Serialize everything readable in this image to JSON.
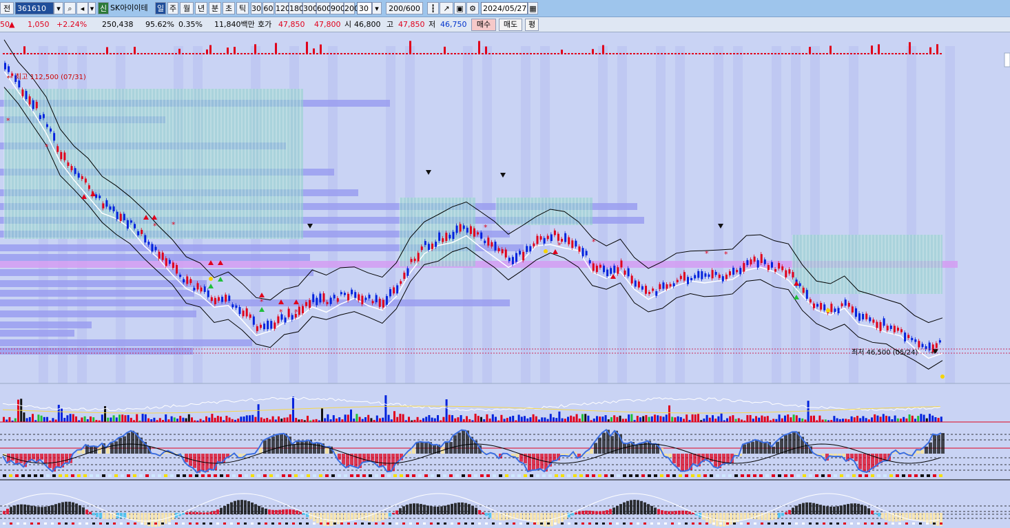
{
  "toolbar": {
    "prefix_label": "전",
    "code_value": "361610",
    "stock_name": "SK아이이테",
    "new_badge": "신",
    "periods": [
      "일",
      "주",
      "월",
      "년",
      "분",
      "초",
      "틱"
    ],
    "active_period": "일",
    "intervals": [
      "30",
      "60",
      "120",
      "180",
      "300",
      "600",
      "900",
      "200"
    ],
    "count_value": "30",
    "range_label": "200/600",
    "date_value": "2024/05/27"
  },
  "quote": {
    "prev_fragment": "50",
    "change_arrow": "▲",
    "change": "1,050",
    "change_pct": "+2.24%",
    "volume": "250,438",
    "vol_ratio": "95.62%",
    "turnover": "0.35%",
    "amount": "11,840백만",
    "ask_label": "호가",
    "ask1": "47,850",
    "ask2": "47,800",
    "open_label": "시",
    "open": "46,800",
    "high_label": "고",
    "high": "47,850",
    "low_label": "저",
    "low": "46,750",
    "buy_label": "매수",
    "sell_label": "매도",
    "eval_label": "평"
  },
  "chart_annotations": {
    "max_label": "최고 112,500 (07/31)",
    "min_label": "최저 46,500 (05/24)"
  },
  "colors": {
    "up": "#e0001b",
    "down": "#0022dd",
    "cloud": "#8fd3c8",
    "background": "#c9d3f4",
    "volume_profile": "#9a9ef0",
    "highlight_band": "#d49cf2"
  },
  "chart_data": {
    "type": "line",
    "series": [
      {
        "values": [
          112500,
          108000,
          104000,
          99000,
          92000,
          88000,
          84500,
          80500,
          78200,
          75800,
          72500,
          69000,
          66000,
          62000,
          60500,
          57500,
          58000,
          55500,
          52000,
          51500,
          54000,
          55000,
          58500,
          57500,
          59000,
          59500,
          58000,
          57500,
          60500,
          66500,
          70500,
          72000,
          73500,
          75000,
          72500,
          70000,
          67500,
          69000,
          71500,
          73000,
          72500,
          70500,
          66000,
          64500,
          66000,
          61500,
          59500,
          61000,
          62500,
          63500,
          63000,
          63500,
          64000,
          66500,
          67000,
          65500,
          64500,
          60000,
          56500,
          55500,
          57000,
          54000,
          53000,
          52000,
          50500,
          48500,
          46500,
          47850
        ]
      }
    ]
  }
}
